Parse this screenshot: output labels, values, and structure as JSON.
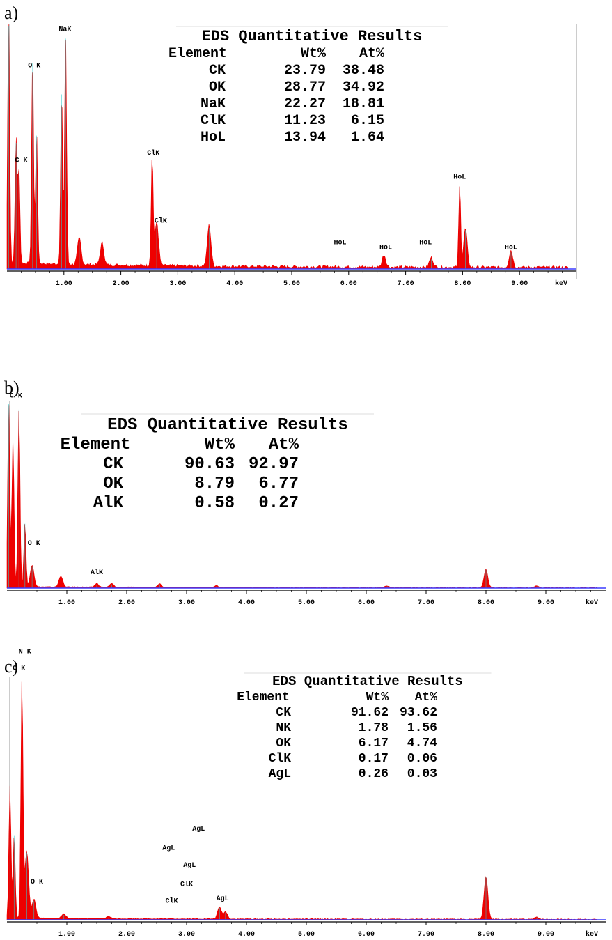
{
  "chart_data": [
    {
      "panel": "a)",
      "type": "area",
      "xunit": "keV",
      "xticks": [
        "1.00",
        "2.00",
        "3.00",
        "4.00",
        "5.00",
        "6.00",
        "7.00",
        "8.00",
        "9.00"
      ],
      "xlim": [
        0,
        10
      ],
      "series": [
        {
          "values_ref": "spectrum"
        }
      ],
      "peaks": [
        {
          "x": 0.03,
          "h": 1.0
        },
        {
          "x": 0.16,
          "h": 0.52
        },
        {
          "x": 0.21,
          "h": 0.4
        },
        {
          "x": 0.45,
          "h": 0.85
        },
        {
          "x": 0.52,
          "h": 0.55
        },
        {
          "x": 0.96,
          "h": 0.72
        },
        {
          "x": 1.03,
          "h": 0.95
        },
        {
          "x": 1.27,
          "h": 0.11
        },
        {
          "x": 1.67,
          "h": 0.09
        },
        {
          "x": 2.55,
          "h": 0.45
        },
        {
          "x": 2.63,
          "h": 0.18
        },
        {
          "x": 3.55,
          "h": 0.17
        },
        {
          "x": 6.62,
          "h": 0.05
        },
        {
          "x": 7.45,
          "h": 0.04
        },
        {
          "x": 7.95,
          "h": 0.34
        },
        {
          "x": 8.05,
          "h": 0.16
        },
        {
          "x": 8.85,
          "h": 0.07
        }
      ],
      "peak_labels": [
        {
          "text": "NaK",
          "x": 1.02,
          "h": 0.97
        },
        {
          "text": "O K",
          "x": 0.48,
          "h": 0.82
        },
        {
          "text": "C K",
          "x": 0.25,
          "h": 0.43
        },
        {
          "text": "ClK",
          "x": 2.57,
          "h": 0.46
        },
        {
          "text": "ClK",
          "x": 2.7,
          "h": 0.18
        },
        {
          "text": "HoL",
          "x": 7.95,
          "h": 0.36
        },
        {
          "text": "HoL",
          "x": 7.35,
          "h": 0.09
        },
        {
          "text": "HoL",
          "x": 6.65,
          "h": 0.07
        },
        {
          "text": "HoL",
          "x": 5.85,
          "h": 0.09
        },
        {
          "text": "HoL",
          "x": 8.85,
          "h": 0.07
        }
      ],
      "results": {
        "title": "EDS Quantitative Results",
        "header": [
          "Element",
          "Wt%",
          "At%"
        ],
        "rows": [
          [
            "CK",
            "23.79",
            "38.48"
          ],
          [
            "OK",
            "28.77",
            "34.92"
          ],
          [
            "NaK",
            "22.27",
            "18.81"
          ],
          [
            "ClK",
            "11.23",
            "6.15"
          ],
          [
            "HoL",
            "13.94",
            "1.64"
          ]
        ]
      }
    },
    {
      "panel": "b)",
      "type": "area",
      "xunit": "keV",
      "xticks": [
        "1.00",
        "2.00",
        "3.00",
        "4.00",
        "5.00",
        "6.00",
        "7.00",
        "8.00",
        "9.00"
      ],
      "xlim": [
        0,
        10
      ],
      "peaks": [
        {
          "x": 0.03,
          "h": 1.0
        },
        {
          "x": 0.1,
          "h": 0.82
        },
        {
          "x": 0.2,
          "h": 0.97
        },
        {
          "x": 0.3,
          "h": 0.35
        },
        {
          "x": 0.42,
          "h": 0.12
        },
        {
          "x": 0.9,
          "h": 0.06
        },
        {
          "x": 1.5,
          "h": 0.02
        },
        {
          "x": 1.75,
          "h": 0.02
        },
        {
          "x": 2.55,
          "h": 0.02
        },
        {
          "x": 3.5,
          "h": 0.01
        },
        {
          "x": 6.35,
          "h": 0.01
        },
        {
          "x": 8.0,
          "h": 0.1
        },
        {
          "x": 8.85,
          "h": 0.01
        }
      ],
      "peak_labels": [
        {
          "text": "C K",
          "x": 0.15,
          "h": 1.02
        },
        {
          "text": "O K",
          "x": 0.45,
          "h": 0.22
        },
        {
          "text": "AlK",
          "x": 1.5,
          "h": 0.06
        }
      ],
      "results": {
        "title": "EDS Quantitative Results",
        "header": [
          "Element",
          "Wt%",
          "At%"
        ],
        "rows": [
          [
            "CK",
            "90.63",
            "92.97"
          ],
          [
            "OK",
            "8.79",
            "6.77"
          ],
          [
            "AlK",
            "0.58",
            "0.27"
          ]
        ]
      }
    },
    {
      "panel": "c)",
      "type": "area",
      "xunit": "keV",
      "xticks": [
        "1.00",
        "2.00",
        "3.00",
        "4.00",
        "5.00",
        "6.00",
        "7.00",
        "8.00",
        "9.00"
      ],
      "xlim": [
        0,
        10
      ],
      "peaks": [
        {
          "x": 0.05,
          "h": 0.55
        },
        {
          "x": 0.12,
          "h": 0.35
        },
        {
          "x": 0.25,
          "h": 1.0
        },
        {
          "x": 0.33,
          "h": 0.28
        },
        {
          "x": 0.45,
          "h": 0.08
        },
        {
          "x": 0.95,
          "h": 0.02
        },
        {
          "x": 1.7,
          "h": 0.01
        },
        {
          "x": 3.55,
          "h": 0.05
        },
        {
          "x": 3.65,
          "h": 0.03
        },
        {
          "x": 8.0,
          "h": 0.18
        },
        {
          "x": 8.85,
          "h": 0.01
        }
      ],
      "peak_labels": [
        {
          "text": "N K",
          "x": 0.3,
          "h": 1.1
        },
        {
          "text": "C K",
          "x": 0.2,
          "h": 1.03
        },
        {
          "text": "O K",
          "x": 0.5,
          "h": 0.14
        },
        {
          "text": "AgL",
          "x": 3.2,
          "h": 0.36
        },
        {
          "text": "AgL",
          "x": 2.7,
          "h": 0.28
        },
        {
          "text": "AgL",
          "x": 3.05,
          "h": 0.21
        },
        {
          "text": "ClK",
          "x": 3.0,
          "h": 0.13
        },
        {
          "text": "ClK",
          "x": 2.75,
          "h": 0.06
        },
        {
          "text": "AgL",
          "x": 3.6,
          "h": 0.07
        }
      ],
      "results": {
        "title": "EDS Quantitative Results",
        "header": [
          "Element",
          "Wt%",
          "At%"
        ],
        "rows": [
          [
            "CK",
            "91.62",
            "93.62"
          ],
          [
            "NK",
            "1.78",
            "1.56"
          ],
          [
            "OK",
            "6.17",
            "4.74"
          ],
          [
            "ClK",
            "0.17",
            "0.06"
          ],
          [
            "AgL",
            "0.26",
            "0.03"
          ]
        ]
      }
    }
  ],
  "colors": {
    "fill": "#ee0000",
    "baseline": "#3b3bff",
    "peakline": "#33cccc",
    "axis": "#000000"
  }
}
